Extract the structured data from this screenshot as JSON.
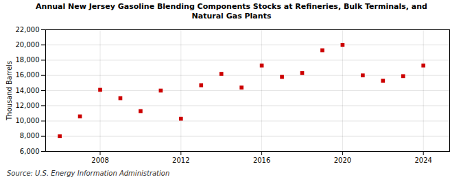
{
  "chart_data": {
    "type": "scatter",
    "title": "Annual New Jersey Gasoline Blending Components Stocks at Refineries, Bulk Terminals, and\nNatural Gas Plants",
    "ylabel": "Thousand Barrels",
    "source": "Source: U.S. Energy Information Administration",
    "x": [
      2006,
      2007,
      2008,
      2009,
      2010,
      2011,
      2012,
      2013,
      2014,
      2015,
      2016,
      2017,
      2018,
      2019,
      2020,
      2021,
      2022,
      2023,
      2024
    ],
    "values": [
      8000,
      10600,
      14100,
      13000,
      11300,
      14000,
      10300,
      14700,
      16200,
      14400,
      17300,
      15800,
      16300,
      19300,
      20000,
      16000,
      15300,
      15900,
      17300
    ],
    "color": "#cc0000",
    "marker": "square",
    "xlim": [
      2005.3,
      2025.3
    ],
    "xticks": [
      2008,
      2012,
      2016,
      2020,
      2024
    ],
    "ylim": [
      6000,
      22000
    ],
    "yticks": [
      {
        "value": 6000,
        "label": "6,000"
      },
      {
        "value": 8000,
        "label": "8,000"
      },
      {
        "value": 10000,
        "label": "10,000"
      },
      {
        "value": 12000,
        "label": "12,000"
      },
      {
        "value": 14000,
        "label": "14,000"
      },
      {
        "value": 16000,
        "label": "16,000"
      },
      {
        "value": 18000,
        "label": "18,000"
      },
      {
        "value": 20000,
        "label": "20,000"
      },
      {
        "value": 22000,
        "label": "22,000"
      }
    ],
    "grid": true
  }
}
